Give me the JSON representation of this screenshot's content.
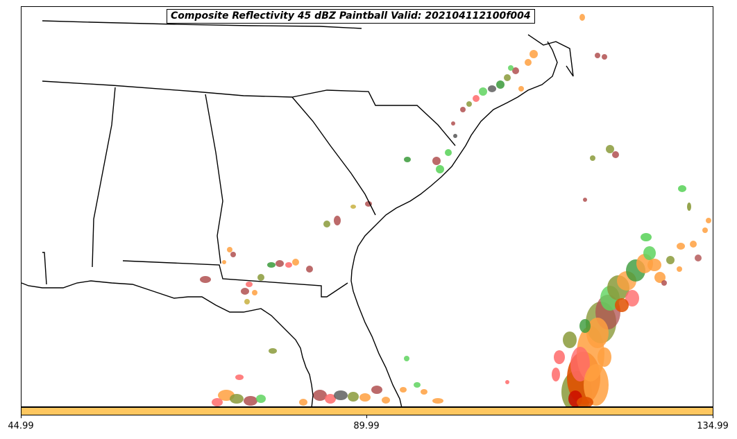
{
  "title": "Composite Reflectivity 45 dBZ Paintball Valid: 202104112100f004",
  "colorbar": {
    "fill_color": "#fec760",
    "tick_labels": [
      "44.99",
      "89.99",
      "134.99"
    ]
  },
  "colors": {
    "coastline": "#000000",
    "paintball_members": [
      "#ff6a6a",
      "#5fd45f",
      "#ffa040",
      "#8a9a3a",
      "#b05050",
      "#555555",
      "#e05000",
      "#c8b040",
      "#3a9a3a"
    ]
  },
  "map": {
    "region": "Southeastern United States",
    "features": [
      "coastline",
      "state-borders",
      "reflectivity-paintballs"
    ]
  }
}
